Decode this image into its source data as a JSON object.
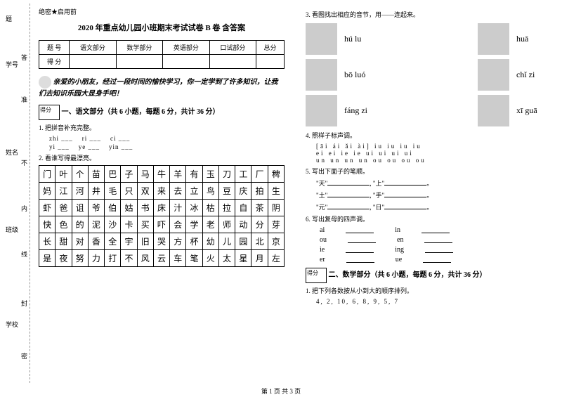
{
  "margin": {
    "l1": "题",
    "l2": "学号",
    "l3": "答",
    "l4": "准",
    "l5": "姓名",
    "l6": "不",
    "l7": "内",
    "l8": "班级",
    "l9": "线",
    "l10": "封",
    "l11": "学校",
    "l12": "密"
  },
  "header": {
    "secret": "绝密★启用前",
    "title": "2020 年重点幼儿园小班期末考试试卷 B 卷 含答案"
  },
  "scoreTable": {
    "h1": "题 号",
    "h2": "语文部分",
    "h3": "数学部分",
    "h4": "英语部分",
    "h5": "口试部分",
    "h6": "总分",
    "r2": "得 分"
  },
  "intro": "亲爱的小朋友，经过一段时间的愉快学习，你一定学到了许多知识，让我们去知识乐园大显身手吧！",
  "scoreBox": "得分",
  "section1": "一、语文部分（共 6 小题，每题 6 分，共计 36 分）",
  "q1": {
    "title": "1. 把拼音补充完整。",
    "line1_a": "zhi ___",
    "line1_b": "ri ___",
    "line1_c": "ci ___",
    "line2_a": "yi ___",
    "line2_b": "ye ___",
    "line2_c": "yin ___"
  },
  "q2": {
    "title": "2. 看谁写得最漂亮。",
    "rows": [
      [
        "门",
        "叶",
        "个",
        "苗",
        "巴",
        "子",
        "马",
        "牛",
        "羊",
        "有",
        "玉",
        "刀",
        "工",
        "厂",
        "稗"
      ],
      [
        "妈",
        "江",
        "河",
        "井",
        "毛",
        "只",
        "双",
        "来",
        "去",
        "立",
        "鸟",
        "豆",
        "庆",
        "拍",
        "生"
      ],
      [
        "虾",
        "爸",
        "诅",
        "爷",
        "伯",
        "姑",
        "书",
        "床",
        "汁",
        "冰",
        "枯",
        "拉",
        "自",
        "茶",
        "阴"
      ],
      [
        "快",
        "色",
        "的",
        "泥",
        "沙",
        "卡",
        "买",
        "吓",
        "会",
        "学",
        "老",
        "师",
        "动",
        "分",
        "芽"
      ],
      [
        "长",
        "甜",
        "对",
        "香",
        "全",
        "宇",
        "旧",
        "哭",
        "方",
        "杯",
        "幼",
        "儿",
        "园",
        "北",
        "京"
      ],
      [
        "是",
        "夜",
        "努",
        "力",
        "打",
        "不",
        "风",
        "云",
        "车",
        "笔",
        "火",
        "太",
        "星",
        "月",
        "左"
      ]
    ]
  },
  "q3": {
    "title": "3. 看图找出相应的音节，用——连起来。",
    "items": [
      {
        "p1": "hú lu",
        "p2": "huā"
      },
      {
        "p1": "bō luó",
        "p2": "chǐ zi"
      },
      {
        "p1": "fáng zi",
        "p2": "xī guā"
      }
    ]
  },
  "q4": {
    "title": "4. 照样子标声调。",
    "line1": "[āi  ái  ǎi  ài]    iu  iu  iu  iu",
    "line2": "ei  ei  ie  ie    ui  ui  ui  ui",
    "line3": "un  un  un  un    ou  ou  ou  ou"
  },
  "q5": {
    "title": "5. 写出下面子的笔顺。",
    "items": [
      {
        "a": "\"天\"",
        "b": "\"上\""
      },
      {
        "a": "\"土\"",
        "b": "\"手\""
      },
      {
        "a": "\"元\"",
        "b": "\"日\""
      }
    ]
  },
  "q6": {
    "title": "6. 写出复母的四声调。",
    "rows": [
      {
        "a": "ai",
        "b": "in"
      },
      {
        "a": "ou",
        "b": "en"
      },
      {
        "a": "ie",
        "b": "ing"
      },
      {
        "a": "er",
        "b": "ue"
      }
    ]
  },
  "section2": "二、数学部分（共 6 小题，每题 6 分，共计 36 分）",
  "mq1": {
    "title": "1. 把下列各数按从小到大的顺序排列。",
    "nums": "4,  2,  10,  6,  8,  9,  5,  7"
  },
  "footer": "第 1 页 共 3 页"
}
